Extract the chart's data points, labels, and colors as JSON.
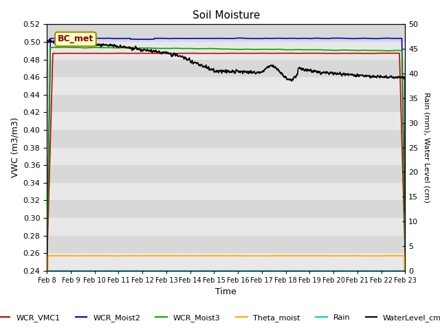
{
  "title": "Soil Moisture",
  "xlabel": "Time",
  "ylabel_left": "VWC (m3/m3)",
  "ylabel_right": "Rain (mm), Water Level (cm)",
  "ylim_left": [
    0.24,
    0.52
  ],
  "ylim_right": [
    0,
    50
  ],
  "yticks_left": [
    0.24,
    0.26,
    0.28,
    0.3,
    0.32,
    0.34,
    0.36,
    0.38,
    0.4,
    0.42,
    0.44,
    0.46,
    0.48,
    0.5,
    0.52
  ],
  "yticks_right": [
    0,
    5,
    10,
    15,
    20,
    25,
    30,
    35,
    40,
    45,
    50
  ],
  "xtick_labels": [
    "Feb 8",
    "Feb 9",
    "Feb 10",
    "Feb 11",
    "Feb 12",
    "Feb 13",
    "Feb 14",
    "Feb 15",
    "Feb 16",
    "Feb 17",
    "Feb 18",
    "Feb 19",
    "Feb 20",
    "Feb 21",
    "Feb 22",
    "Feb 23"
  ],
  "annotation_text": "BC_met",
  "band_colors": [
    "#e8e8e8",
    "#d8d8d8"
  ],
  "legend_items": [
    {
      "label": "WCR_VMC1",
      "color": "#cc0000",
      "lw": 1.2
    },
    {
      "label": "WCR_Moist2",
      "color": "#0000cc",
      "lw": 1.2
    },
    {
      "label": "WCR_Moist3",
      "color": "#00aa00",
      "lw": 1.2
    },
    {
      "label": "Theta_moist",
      "color": "#ffaa00",
      "lw": 1.2
    },
    {
      "label": "Rain",
      "color": "#00cccc",
      "lw": 1.2
    },
    {
      "label": "WaterLevel_cm",
      "color": "#000000",
      "lw": 1.2
    }
  ]
}
